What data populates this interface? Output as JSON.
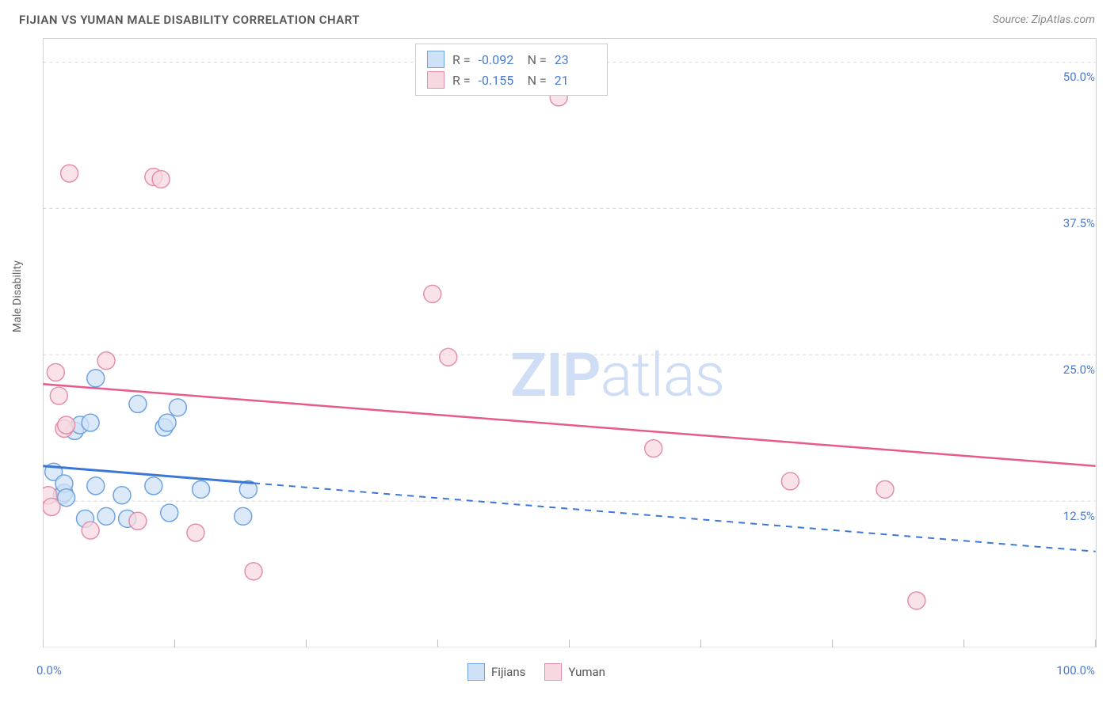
{
  "title": "FIJIAN VS YUMAN MALE DISABILITY CORRELATION CHART",
  "source": "Source: ZipAtlas.com",
  "y_axis_label": "Male Disability",
  "watermark": {
    "bold": "ZIP",
    "light": "atlas"
  },
  "chart": {
    "type": "scatter",
    "xlim": [
      0,
      100
    ],
    "ylim": [
      0,
      52
    ],
    "x_ticks": [
      0,
      12.5,
      25,
      37.5,
      50,
      62.5,
      75,
      87.5,
      100
    ],
    "y_ticks": [
      12.5,
      25,
      37.5,
      50
    ],
    "y_tick_labels": [
      "12.5%",
      "25.0%",
      "37.5%",
      "50.0%"
    ],
    "x_tick_labels_shown": {
      "left": "0.0%",
      "right": "100.0%"
    },
    "grid_color": "#d8d8d8",
    "grid_dash": "4,4",
    "background_color": "#ffffff",
    "marker_radius": 11,
    "marker_stroke_width": 1.5,
    "series": [
      {
        "name": "Fijians",
        "fill": "#cfe1f7",
        "stroke": "#6fa3e0",
        "r_value": "-0.092",
        "n_value": "23",
        "trend": {
          "x1": 0,
          "y1": 15.5,
          "x2": 100,
          "y2": 8.2,
          "solid_until_x": 20,
          "color": "#3b78d6",
          "width": 3
        },
        "points": [
          {
            "x": 1.0,
            "y": 15.0
          },
          {
            "x": 1.8,
            "y": 13.0
          },
          {
            "x": 2.0,
            "y": 13.2
          },
          {
            "x": 2.0,
            "y": 14.0
          },
          {
            "x": 2.2,
            "y": 12.8
          },
          {
            "x": 3.0,
            "y": 18.5
          },
          {
            "x": 3.5,
            "y": 19.0
          },
          {
            "x": 4.0,
            "y": 11.0
          },
          {
            "x": 4.5,
            "y": 19.2
          },
          {
            "x": 5.0,
            "y": 23.0
          },
          {
            "x": 5.0,
            "y": 13.8
          },
          {
            "x": 6.0,
            "y": 11.2
          },
          {
            "x": 7.5,
            "y": 13.0
          },
          {
            "x": 8.0,
            "y": 11.0
          },
          {
            "x": 9.0,
            "y": 20.8
          },
          {
            "x": 10.5,
            "y": 13.8
          },
          {
            "x": 11.5,
            "y": 18.8
          },
          {
            "x": 11.8,
            "y": 19.2
          },
          {
            "x": 12.0,
            "y": 11.5
          },
          {
            "x": 12.8,
            "y": 20.5
          },
          {
            "x": 15.0,
            "y": 13.5
          },
          {
            "x": 19.0,
            "y": 11.2
          },
          {
            "x": 19.5,
            "y": 13.5
          }
        ]
      },
      {
        "name": "Yuman",
        "fill": "#f7d8e0",
        "stroke": "#e38faa",
        "r_value": "-0.155",
        "n_value": "21",
        "trend": {
          "x1": 0,
          "y1": 22.5,
          "x2": 100,
          "y2": 15.5,
          "solid_until_x": 100,
          "color": "#e75a8c",
          "width": 2.5
        },
        "points": [
          {
            "x": 0.5,
            "y": 13.0
          },
          {
            "x": 0.8,
            "y": 12.0
          },
          {
            "x": 1.2,
            "y": 23.5
          },
          {
            "x": 1.5,
            "y": 21.5
          },
          {
            "x": 2.0,
            "y": 18.7
          },
          {
            "x": 2.2,
            "y": 19.0
          },
          {
            "x": 2.5,
            "y": 40.5
          },
          {
            "x": 4.5,
            "y": 10.0
          },
          {
            "x": 6.0,
            "y": 24.5
          },
          {
            "x": 9.0,
            "y": 10.8
          },
          {
            "x": 10.5,
            "y": 40.2
          },
          {
            "x": 11.2,
            "y": 40.0
          },
          {
            "x": 14.5,
            "y": 9.8
          },
          {
            "x": 20.0,
            "y": 6.5
          },
          {
            "x": 37.0,
            "y": 30.2
          },
          {
            "x": 38.5,
            "y": 24.8
          },
          {
            "x": 49.0,
            "y": 47.0
          },
          {
            "x": 58.0,
            "y": 17.0
          },
          {
            "x": 71.0,
            "y": 14.2
          },
          {
            "x": 80.0,
            "y": 13.5
          },
          {
            "x": 83.0,
            "y": 4.0
          }
        ]
      }
    ]
  },
  "bottom_legend": [
    {
      "label": "Fijians",
      "fill": "#cfe1f7",
      "stroke": "#6fa3e0"
    },
    {
      "label": "Yuman",
      "fill": "#f7d8e0",
      "stroke": "#e38faa"
    }
  ]
}
